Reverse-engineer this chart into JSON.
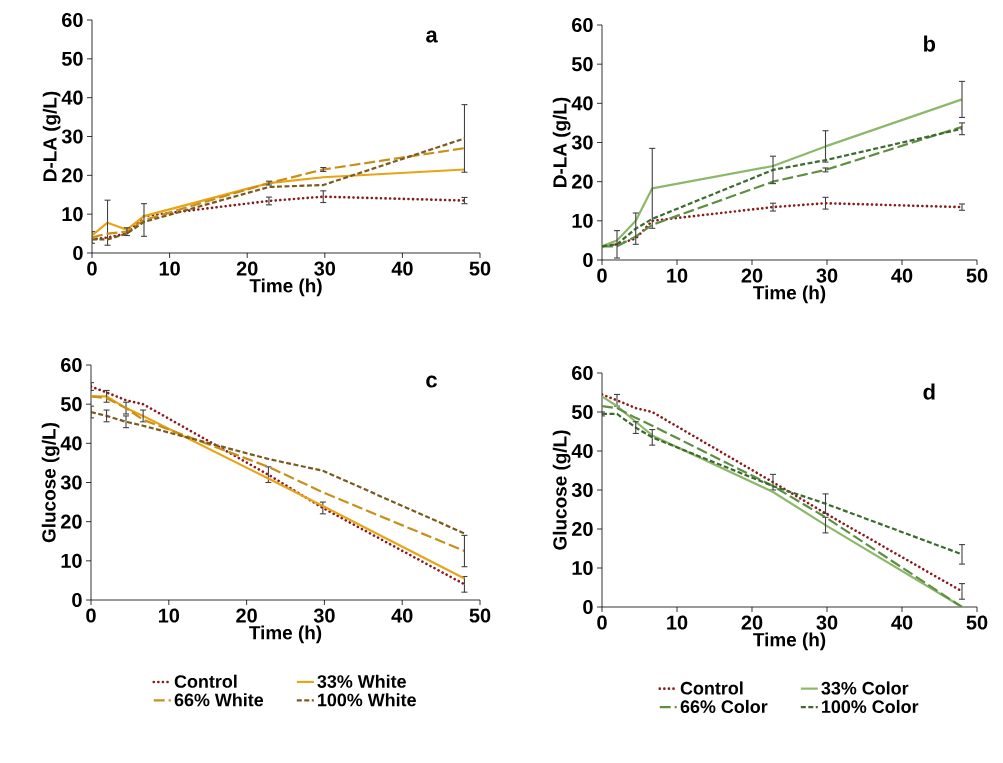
{
  "chart_data": [
    {
      "type": "line",
      "title": "a",
      "xlabel": "Time (h)",
      "ylabel": "D-LA (g/L)",
      "xlim": [
        0,
        50
      ],
      "ylim": [
        0,
        60
      ],
      "xticks": [
        0,
        10,
        20,
        30,
        40,
        50
      ],
      "yticks": [
        0,
        10,
        20,
        30,
        40,
        50,
        60
      ],
      "x": [
        0,
        2,
        4.5,
        6.7,
        22.8,
        29.8,
        48
      ],
      "series": [
        {
          "color": "#8b1a1a",
          "line_style": "dotted",
          "values": [
            3.5,
            4,
            5,
            9.5,
            13.4,
            14.5,
            13.5
          ],
          "errors": [
            null,
            null,
            null,
            null,
            1,
            1.5,
            0.8
          ]
        },
        {
          "color": "#e8a317",
          "line_style": "solid",
          "values": [
            4.5,
            7.8,
            6,
            9.5,
            18,
            19.5,
            21.5
          ],
          "errors": [
            null,
            5.8,
            null,
            null,
            null,
            null,
            null
          ]
        },
        {
          "color": "#c8901a",
          "line_style": "dashed",
          "values": [
            4,
            5,
            5.5,
            8.5,
            18,
            21.5,
            27
          ],
          "errors": [
            1.5,
            null,
            1,
            4.2,
            0.5,
            0.5,
            null
          ]
        },
        {
          "color": "#7a5a1e",
          "line_style": "dashed",
          "values": [
            3.5,
            3.5,
            5,
            8,
            17,
            17.5,
            29.5
          ],
          "errors": [
            null,
            null,
            null,
            null,
            null,
            null,
            8.7
          ]
        }
      ]
    },
    {
      "type": "line",
      "title": "b",
      "xlabel": "Time (h)",
      "ylabel": "D-LA (g/L)",
      "xlim": [
        0,
        50
      ],
      "ylim": [
        0,
        60
      ],
      "xticks": [
        0,
        10,
        20,
        30,
        40,
        50
      ],
      "yticks": [
        0,
        10,
        20,
        30,
        40,
        50,
        60
      ],
      "x": [
        0,
        2,
        4.5,
        6.7,
        22.8,
        29.8,
        48
      ],
      "series": [
        {
          "color": "#8b1a1a",
          "line_style": "dotted",
          "values": [
            3.5,
            4,
            5.5,
            10,
            13.5,
            14.5,
            13.5
          ],
          "errors": [
            null,
            null,
            null,
            null,
            1,
            1.5,
            0.8
          ]
        },
        {
          "color": "#8cb86a",
          "line_style": "solid",
          "values": [
            3.5,
            5,
            10,
            18.3,
            24,
            29,
            41
          ],
          "errors": [
            null,
            null,
            null,
            10.2,
            null,
            4,
            4.6
          ]
        },
        {
          "color": "#5f8f42",
          "line_style": "dashed",
          "values": [
            3.5,
            3.5,
            6,
            9,
            20,
            23,
            34
          ],
          "errors": [
            null,
            null,
            null,
            null,
            null,
            0.5,
            null
          ]
        },
        {
          "color": "#3d6b2f",
          "line_style": "dashed",
          "values": [
            3.5,
            4,
            8,
            10.5,
            23,
            25.5,
            33.5
          ],
          "errors": [
            null,
            3.5,
            4,
            null,
            3.5,
            null,
            1.5
          ]
        }
      ]
    },
    {
      "type": "line",
      "title": "c",
      "xlabel": "Time (h)",
      "ylabel": "Glucose (g/L)",
      "xlim": [
        0,
        50
      ],
      "ylim": [
        0,
        60
      ],
      "xticks": [
        0,
        10,
        20,
        30,
        40,
        50
      ],
      "yticks": [
        0,
        10,
        20,
        30,
        40,
        50,
        60
      ],
      "x": [
        0,
        2,
        4.5,
        6.7,
        22.8,
        29.8,
        48
      ],
      "legend": "bottom",
      "series": [
        {
          "name": "Control",
          "color": "#8b1a1a",
          "line_style": "dotted",
          "values": [
            54.5,
            53,
            51,
            50,
            32,
            23.5,
            4
          ],
          "errors": [
            1,
            null,
            null,
            null,
            2,
            1.5,
            2
          ]
        },
        {
          "name": "33% White",
          "color": "#e8a317",
          "line_style": "solid",
          "values": [
            52,
            52,
            49,
            47,
            31,
            24,
            5.5
          ],
          "errors": [
            null,
            1.5,
            1.5,
            1.5,
            null,
            null,
            null
          ]
        },
        {
          "name": "66% White",
          "color": "#c8901a",
          "line_style": "dashed",
          "values": [
            52,
            51.5,
            49,
            46,
            34,
            27.5,
            12.5
          ],
          "errors": [
            null,
            null,
            null,
            null,
            null,
            null,
            4
          ]
        },
        {
          "name": "100% White",
          "color": "#7a5a1e",
          "line_style": "dashed",
          "values": [
            48,
            47,
            45.5,
            44.5,
            36,
            33,
            17
          ],
          "errors": [
            1.5,
            1.5,
            1.5,
            null,
            null,
            null,
            null
          ]
        }
      ]
    },
    {
      "type": "line",
      "title": "d",
      "xlabel": "Time (h)",
      "ylabel": "Glucose (g/L)",
      "xlim": [
        0,
        50
      ],
      "ylim": [
        0,
        60
      ],
      "xticks": [
        0,
        10,
        20,
        30,
        40,
        50
      ],
      "yticks": [
        0,
        10,
        20,
        30,
        40,
        50,
        60
      ],
      "x": [
        0,
        2,
        4.5,
        6.7,
        22.8,
        29.8,
        48
      ],
      "legend": "bottom",
      "series": [
        {
          "name": "Control",
          "color": "#8b1a1a",
          "line_style": "dotted",
          "values": [
            54.5,
            53,
            51,
            50,
            32,
            24,
            4
          ],
          "errors": [
            null,
            1.5,
            null,
            null,
            2,
            null,
            2
          ]
        },
        {
          "name": "33% Color",
          "color": "#8cb86a",
          "line_style": "solid",
          "values": [
            54,
            51.5,
            47.5,
            44,
            29.5,
            21,
            0
          ],
          "errors": [
            null,
            null,
            null,
            null,
            null,
            2,
            null
          ]
        },
        {
          "name": "66% Color",
          "color": "#5f8f42",
          "line_style": "dashed",
          "values": [
            51.5,
            51,
            48.5,
            46.5,
            31,
            23,
            0
          ]
        },
        {
          "name": "100% Color",
          "color": "#3d6b2f",
          "line_style": "dashed",
          "values": [
            49.5,
            49.5,
            46,
            43.5,
            31,
            26.5,
            13.5
          ],
          "errors": [
            0.5,
            null,
            1.5,
            2,
            null,
            2.5,
            2.5
          ]
        }
      ]
    }
  ]
}
